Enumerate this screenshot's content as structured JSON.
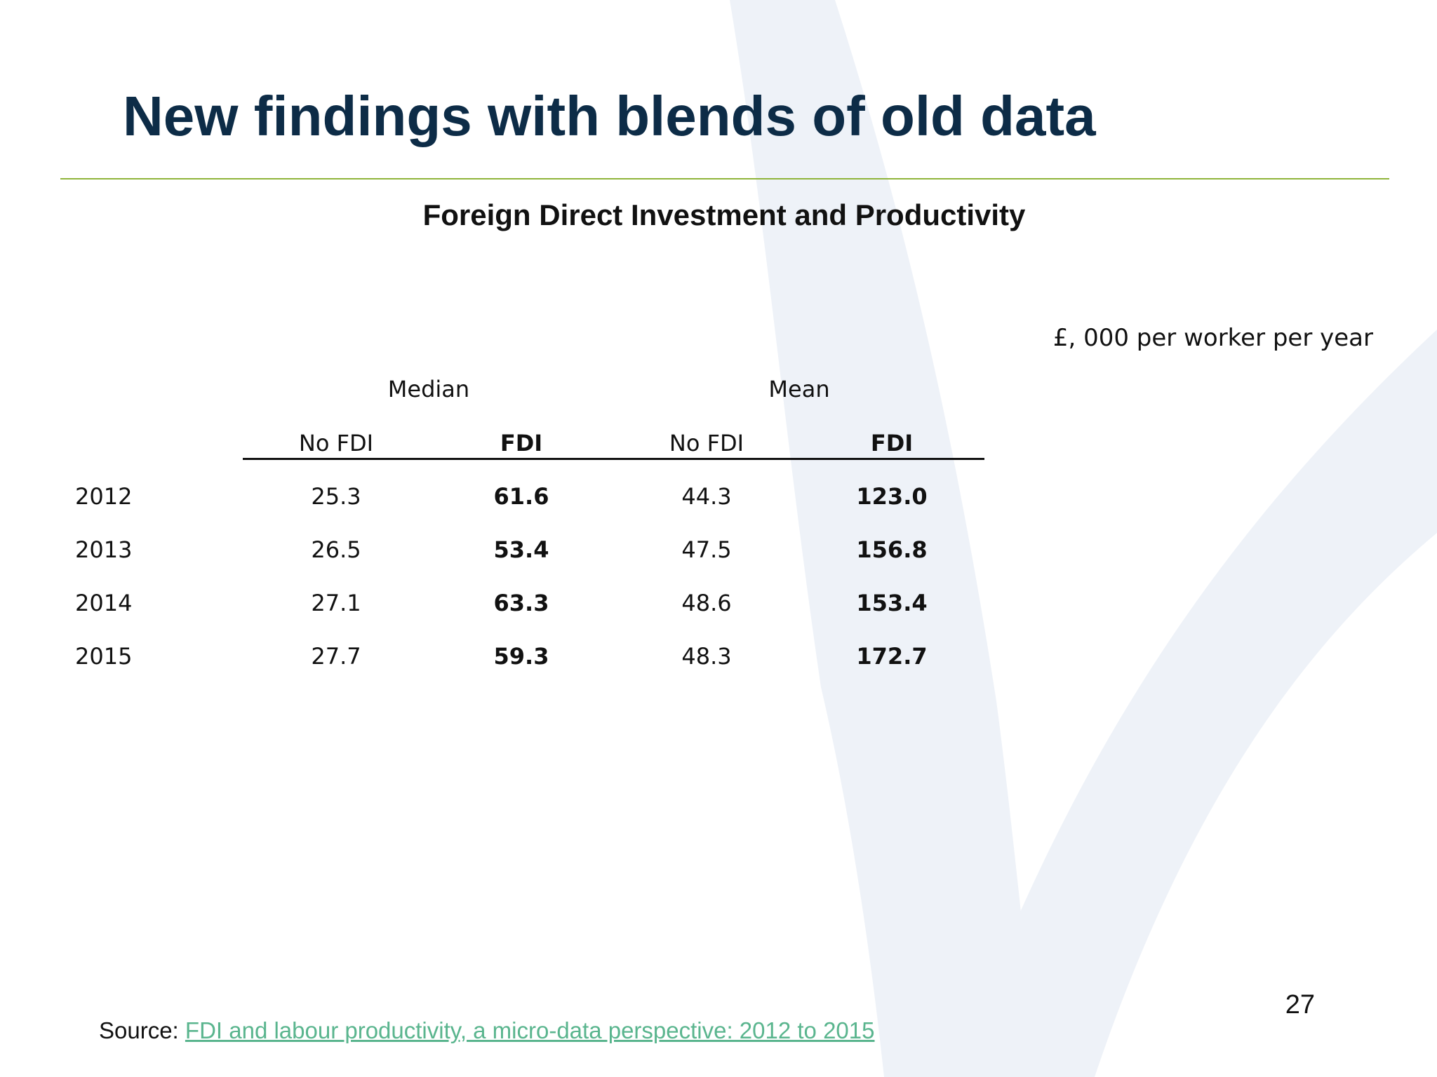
{
  "slide": {
    "title": "New findings with blends of old data",
    "table_title": "Foreign Direct Investment and Productivity",
    "units": "£, 000 per worker per year",
    "page_number": "27",
    "source_prefix": "Source: ",
    "source_link_text": "FDI and labour productivity, a micro-data perspective: 2012 to 2015"
  },
  "colors": {
    "title": "#0d2c47",
    "rule": "#8fb43a",
    "link": "#5ab58e",
    "background_mark": "#eef2f8"
  },
  "table": {
    "group_headers": [
      "Median",
      "Mean"
    ],
    "column_headers": [
      "No FDI",
      "FDI",
      "No FDI",
      "FDI"
    ],
    "rows": [
      {
        "year": "2012",
        "median_no_fdi": "25.3",
        "median_fdi": "61.6",
        "mean_no_fdi": "44.3",
        "mean_fdi": "123.0"
      },
      {
        "year": "2013",
        "median_no_fdi": "26.5",
        "median_fdi": "53.4",
        "mean_no_fdi": "47.5",
        "mean_fdi": "156.8"
      },
      {
        "year": "2014",
        "median_no_fdi": "27.1",
        "median_fdi": "63.3",
        "mean_no_fdi": "48.6",
        "mean_fdi": "153.4"
      },
      {
        "year": "2015",
        "median_no_fdi": "27.7",
        "median_fdi": "59.3",
        "mean_no_fdi": "48.3",
        "mean_fdi": "172.7"
      }
    ]
  }
}
